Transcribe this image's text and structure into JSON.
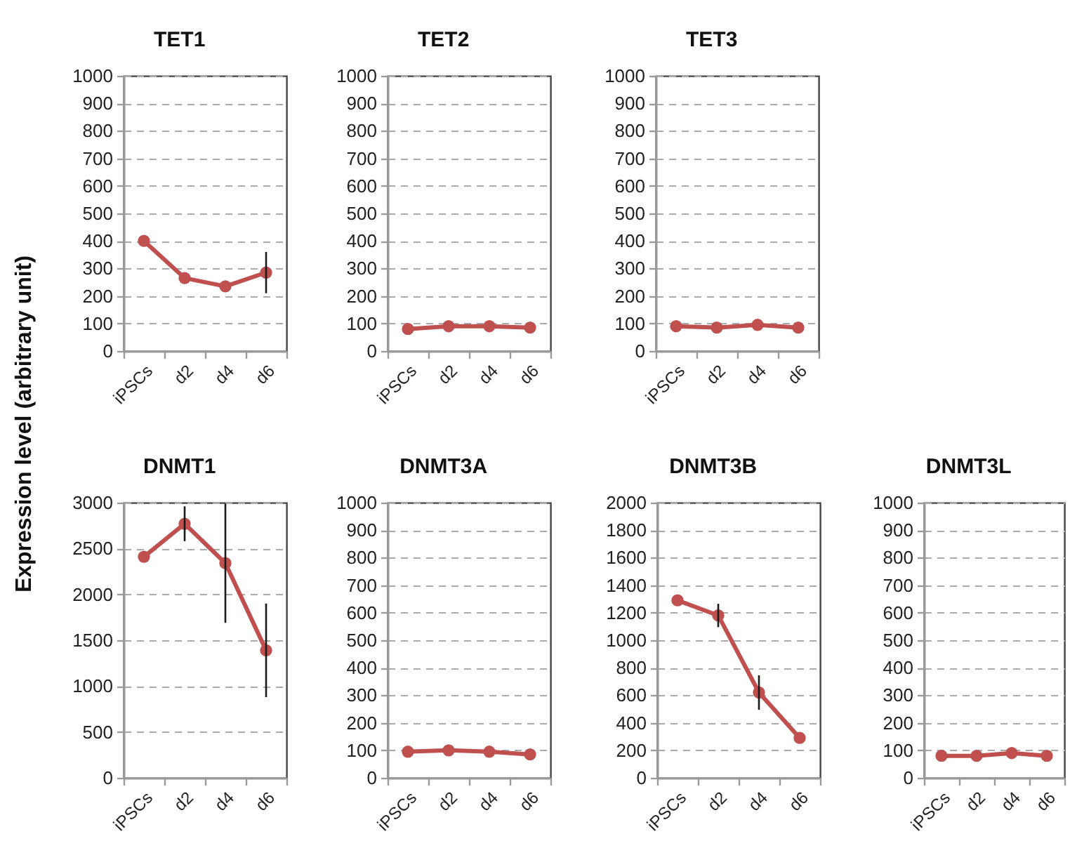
{
  "chart_data": [
    {
      "type": "line",
      "title": "TET1",
      "ylabel": "Expression level (arbitrary unit)",
      "categories": [
        "iPSCs",
        "d2",
        "d4",
        "d6"
      ],
      "values": [
        400,
        265,
        235,
        285
      ],
      "errors": [
        null,
        null,
        null,
        75
      ],
      "color": "#c0504d",
      "ylim": [
        0,
        1000
      ],
      "yticks": [
        0,
        100,
        200,
        300,
        400,
        500,
        600,
        700,
        800,
        900,
        1000
      ],
      "grid": "y",
      "marker": "circle",
      "line_style": "solid"
    },
    {
      "type": "line",
      "title": "TET2",
      "categories": [
        "iPSCs",
        "d2",
        "d4",
        "d6"
      ],
      "values": [
        80,
        90,
        90,
        85
      ],
      "color": "#c0504d",
      "ylim": [
        0,
        1000
      ],
      "yticks": [
        0,
        100,
        200,
        300,
        400,
        500,
        600,
        700,
        800,
        900,
        1000
      ],
      "grid": "y",
      "marker": "circle",
      "line_style": "solid"
    },
    {
      "type": "line",
      "title": "TET3",
      "categories": [
        "iPSCs",
        "d2",
        "d4",
        "d6"
      ],
      "values": [
        90,
        85,
        95,
        85
      ],
      "color": "#c0504d",
      "ylim": [
        0,
        1000
      ],
      "yticks": [
        0,
        100,
        200,
        300,
        400,
        500,
        600,
        700,
        800,
        900,
        1000
      ],
      "grid": "y",
      "marker": "circle",
      "line_style": "solid"
    },
    {
      "type": "line",
      "title": "DNMT1",
      "categories": [
        "iPSCs",
        "d2",
        "d4",
        "d6"
      ],
      "values": [
        2410,
        2770,
        2340,
        1390
      ],
      "errors": [
        null,
        190,
        650,
        510
      ],
      "color": "#c0504d",
      "ylim": [
        0,
        3000
      ],
      "yticks": [
        0,
        500,
        1000,
        1500,
        2000,
        2500,
        3000
      ],
      "grid": "y",
      "marker": "circle",
      "line_style": "solid"
    },
    {
      "type": "line",
      "title": "DNMT3A",
      "categories": [
        "iPSCs",
        "d2",
        "d4",
        "d6"
      ],
      "values": [
        95,
        100,
        95,
        85
      ],
      "color": "#c0504d",
      "ylim": [
        0,
        1000
      ],
      "yticks": [
        0,
        100,
        200,
        300,
        400,
        500,
        600,
        700,
        800,
        900,
        1000
      ],
      "grid": "y",
      "marker": "circle",
      "line_style": "solid"
    },
    {
      "type": "line",
      "title": "DNMT3B",
      "categories": [
        "iPSCs",
        "d2",
        "d4",
        "d6"
      ],
      "values": [
        1290,
        1180,
        620,
        290
      ],
      "errors": [
        null,
        85,
        125,
        null
      ],
      "color": "#c0504d",
      "ylim": [
        0,
        2000
      ],
      "yticks": [
        0,
        200,
        400,
        600,
        800,
        1000,
        1200,
        1400,
        1600,
        1800,
        2000
      ],
      "grid": "y",
      "marker": "circle",
      "line_style": "solid"
    },
    {
      "type": "line",
      "title": "DNMT3L",
      "categories": [
        "iPSCs",
        "d2",
        "d4",
        "d6"
      ],
      "values": [
        80,
        80,
        90,
        80
      ],
      "color": "#c0504d",
      "ylim": [
        0,
        1000
      ],
      "yticks": [
        0,
        100,
        200,
        300,
        400,
        500,
        600,
        700,
        800,
        900,
        1000
      ],
      "grid": "y",
      "marker": "circle",
      "line_style": "solid"
    }
  ]
}
